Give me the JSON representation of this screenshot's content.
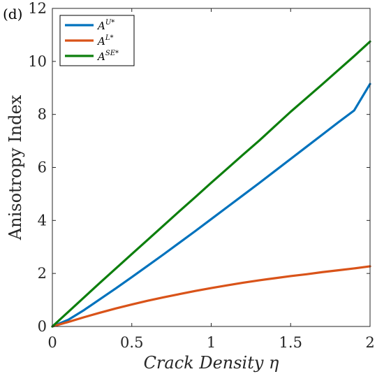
{
  "panel_label": "(d)",
  "chart_data": {
    "type": "line",
    "title": "",
    "xlabel": "Crack Density η",
    "ylabel": "Anisotropy Index",
    "xlim": [
      0,
      2
    ],
    "ylim": [
      0,
      12
    ],
    "xticks": [
      0,
      0.5,
      1,
      1.5,
      2
    ],
    "xtick_labels": [
      "0",
      "0.5",
      "1",
      "1.5",
      "2"
    ],
    "yticks": [
      0,
      2,
      4,
      6,
      8,
      10,
      12
    ],
    "ytick_labels": [
      "0",
      "2",
      "4",
      "6",
      "8",
      "10",
      "12"
    ],
    "grid": false,
    "legend_position": "top-left",
    "x": [
      0,
      0.1,
      0.2,
      0.3,
      0.4,
      0.5,
      0.6,
      0.7,
      0.8,
      0.9,
      1.0,
      1.1,
      1.2,
      1.3,
      1.4,
      1.5,
      1.6,
      1.7,
      1.8,
      1.9,
      2.0
    ],
    "series": [
      {
        "name": "U*",
        "legend_base": "A",
        "legend_sup": "U*",
        "color": "#0072BD",
        "values": [
          0,
          0.25,
          0.62,
          1.03,
          1.44,
          1.86,
          2.29,
          2.72,
          3.16,
          3.6,
          4.05,
          4.5,
          4.95,
          5.4,
          5.86,
          6.32,
          6.78,
          7.24,
          7.7,
          8.15,
          9.15
        ]
      },
      {
        "name": "L*",
        "legend_base": "A",
        "legend_sup": "L*",
        "color": "#D95319",
        "values": [
          0,
          0.17,
          0.35,
          0.52,
          0.68,
          0.83,
          0.97,
          1.1,
          1.22,
          1.34,
          1.45,
          1.55,
          1.65,
          1.74,
          1.82,
          1.9,
          1.97,
          2.05,
          2.12,
          2.19,
          2.27
        ]
      },
      {
        "name": "SE*",
        "legend_base": "A",
        "legend_sup": "SE*",
        "color": "#0D7F0D",
        "values": [
          0,
          0.55,
          1.1,
          1.65,
          2.19,
          2.73,
          3.27,
          3.81,
          4.35,
          4.88,
          5.42,
          5.95,
          6.48,
          7.0,
          7.55,
          8.1,
          8.62,
          9.14,
          9.67,
          10.2,
          10.75
        ]
      }
    ]
  }
}
